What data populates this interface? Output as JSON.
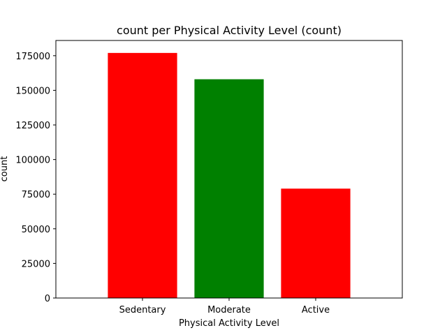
{
  "chart_data": {
    "type": "bar",
    "title": "count per Physical Activity Level (count)",
    "xlabel": "Physical Activity Level",
    "ylabel": "count",
    "categories": [
      "Sedentary",
      "Moderate",
      "Active"
    ],
    "values": [
      177000,
      158000,
      79000
    ],
    "colors": [
      "#ff0000",
      "#008000",
      "#ff0000"
    ],
    "ylim": [
      0,
      186000
    ],
    "yticks": [
      0,
      25000,
      50000,
      75000,
      100000,
      125000,
      150000,
      175000
    ],
    "ytick_labels": [
      "0",
      "25000",
      "50000",
      "75000",
      "100000",
      "125000",
      "150000",
      "175000"
    ],
    "grid": false,
    "legend": "none"
  }
}
